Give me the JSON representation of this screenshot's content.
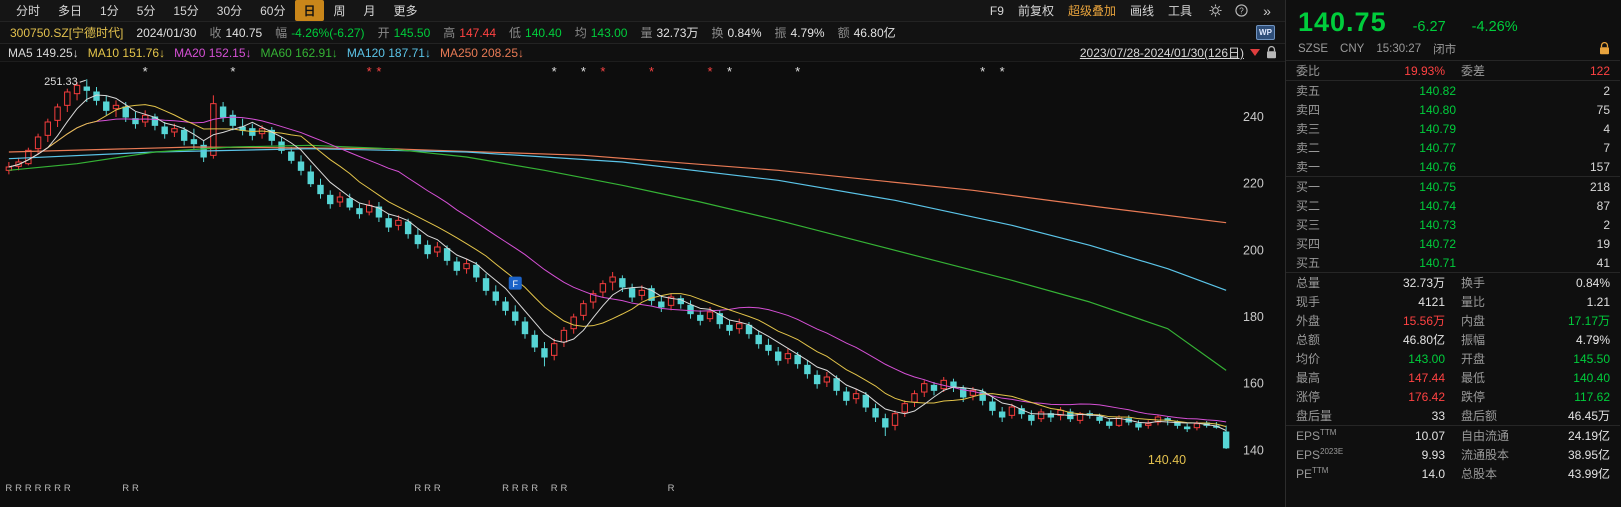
{
  "toolbar": {
    "left_items": [
      "分时",
      "多日",
      "1分",
      "5分",
      "15分",
      "30分",
      "60分",
      "日",
      "周",
      "月",
      "更多"
    ],
    "active_item": "日",
    "right_items": [
      "F9",
      "前复权",
      "超级叠加",
      "画线",
      "工具"
    ],
    "accent_item": "超级叠加",
    "icons": {
      "gear": "gear-icon",
      "help": "help-icon",
      "chevrons": "»"
    }
  },
  "info_bar": {
    "symbol": "300750.SZ[宁德时代]",
    "date": "2024/01/30",
    "fields": [
      {
        "label": "收",
        "value": "140.75",
        "c": "w"
      },
      {
        "label": "幅",
        "value": "-4.26%(-6.27)",
        "c": "g"
      },
      {
        "label": "开",
        "value": "145.50",
        "c": "g"
      },
      {
        "label": "高",
        "value": "147.44",
        "c": "r"
      },
      {
        "label": "低",
        "value": "140.40",
        "c": "g"
      },
      {
        "label": "均",
        "value": "143.00",
        "c": "g"
      },
      {
        "label": "量",
        "value": "32.73万",
        "c": "w"
      },
      {
        "label": "换",
        "value": "0.84%",
        "c": "w"
      },
      {
        "label": "振",
        "value": "4.79%",
        "c": "w"
      },
      {
        "label": "额",
        "value": "46.80亿",
        "c": "w"
      }
    ],
    "wp_badge": "WP"
  },
  "ma_bar": {
    "items": [
      {
        "label": "MA5",
        "value": "149.25",
        "arrow": "↓",
        "color": "#d9d9d9"
      },
      {
        "label": "MA10",
        "value": "151.76",
        "arrow": "↓",
        "color": "#e3c44a"
      },
      {
        "label": "MA20",
        "value": "152.15",
        "arrow": "↓",
        "color": "#d550d5"
      },
      {
        "label": "MA60",
        "value": "162.91",
        "arrow": "↓",
        "color": "#35b235"
      },
      {
        "label": "MA120",
        "value": "187.71",
        "arrow": "↓",
        "color": "#5bc4e8"
      },
      {
        "label": "MA250",
        "value": "208.25",
        "arrow": "↓",
        "color": "#e87a55"
      }
    ],
    "range": "2023/07/28-2024/01/30(126日)"
  },
  "chart": {
    "type": "candlestick",
    "y_axis": [
      240,
      220,
      200,
      180,
      160,
      140
    ],
    "ohlc": [
      [
        224.0,
        226.5,
        222.8,
        225.0
      ],
      [
        225.2,
        227.8,
        224.0,
        226.5
      ],
      [
        226.0,
        230.8,
        225.5,
        230.0
      ],
      [
        230.5,
        235.0,
        229.0,
        234.0
      ],
      [
        234.5,
        239.5,
        232.5,
        238.5
      ],
      [
        239.0,
        244.0,
        237.0,
        243.0
      ],
      [
        243.5,
        248.5,
        241.5,
        247.5
      ],
      [
        247.0,
        250.5,
        245.0,
        249.5
      ],
      [
        249.0,
        251.33,
        244.5,
        248.0
      ],
      [
        247.5,
        249.0,
        243.5,
        245.0
      ],
      [
        244.5,
        246.5,
        240.5,
        242.0
      ],
      [
        242.5,
        245.0,
        240.0,
        243.5
      ],
      [
        243.0,
        244.5,
        238.5,
        240.0
      ],
      [
        239.5,
        241.5,
        236.5,
        238.0
      ],
      [
        238.5,
        242.0,
        237.0,
        240.5
      ],
      [
        240.0,
        241.0,
        236.0,
        237.5
      ],
      [
        237.0,
        238.5,
        233.5,
        235.0
      ],
      [
        235.5,
        238.0,
        234.0,
        236.5
      ],
      [
        236.0,
        237.0,
        231.5,
        233.0
      ],
      [
        233.2,
        236.5,
        230.5,
        232.0
      ],
      [
        231.5,
        233.0,
        226.5,
        228.0
      ],
      [
        228.5,
        246.5,
        227.5,
        244.0
      ],
      [
        243.0,
        244.5,
        238.5,
        240.0
      ],
      [
        240.5,
        242.0,
        236.0,
        237.5
      ],
      [
        237.0,
        239.5,
        234.5,
        236.0
      ],
      [
        236.5,
        238.0,
        233.0,
        234.5
      ],
      [
        235.0,
        237.5,
        233.5,
        236.5
      ],
      [
        236.0,
        237.0,
        231.5,
        233.0
      ],
      [
        232.5,
        234.0,
        229.0,
        230.0
      ],
      [
        229.5,
        231.0,
        226.0,
        227.0
      ],
      [
        226.5,
        228.5,
        222.5,
        224.0
      ],
      [
        223.5,
        225.5,
        219.0,
        220.0
      ],
      [
        219.5,
        221.5,
        215.5,
        217.0
      ],
      [
        216.5,
        218.0,
        212.5,
        214.0
      ],
      [
        214.5,
        217.5,
        213.0,
        216.0
      ],
      [
        215.5,
        217.0,
        212.0,
        213.0
      ],
      [
        212.5,
        214.0,
        209.5,
        211.0
      ],
      [
        211.5,
        215.0,
        210.5,
        213.5
      ],
      [
        213.0,
        214.5,
        208.5,
        210.0
      ],
      [
        209.5,
        211.0,
        205.5,
        207.0
      ],
      [
        207.5,
        210.5,
        206.0,
        209.0
      ],
      [
        208.5,
        209.5,
        203.5,
        205.0
      ],
      [
        204.5,
        206.5,
        200.5,
        202.0
      ],
      [
        201.5,
        203.0,
        197.5,
        199.0
      ],
      [
        199.5,
        202.5,
        198.0,
        201.0
      ],
      [
        200.5,
        201.5,
        195.5,
        197.0
      ],
      [
        196.5,
        198.0,
        192.5,
        194.0
      ],
      [
        194.5,
        197.5,
        193.0,
        196.0
      ],
      [
        195.5,
        196.5,
        190.5,
        192.0
      ],
      [
        191.5,
        193.0,
        186.5,
        188.0
      ],
      [
        187.5,
        189.5,
        183.5,
        185.0
      ],
      [
        184.5,
        186.0,
        180.5,
        182.0
      ],
      [
        181.5,
        183.5,
        177.5,
        179.0
      ],
      [
        178.5,
        180.0,
        173.5,
        175.0
      ],
      [
        174.5,
        176.0,
        169.5,
        171.0
      ],
      [
        170.5,
        172.5,
        165.2,
        168.0
      ],
      [
        168.5,
        173.5,
        167.0,
        172.0
      ],
      [
        172.5,
        177.0,
        171.0,
        176.0
      ],
      [
        176.5,
        181.0,
        175.0,
        180.0
      ],
      [
        180.5,
        185.0,
        179.0,
        184.0
      ],
      [
        184.5,
        188.0,
        182.5,
        187.0
      ],
      [
        187.5,
        191.0,
        186.0,
        190.0
      ],
      [
        190.5,
        193.5,
        188.0,
        192.0
      ],
      [
        191.5,
        192.5,
        187.5,
        189.0
      ],
      [
        188.5,
        190.0,
        184.5,
        186.0
      ],
      [
        186.5,
        189.5,
        185.0,
        188.0
      ],
      [
        188.5,
        189.5,
        183.5,
        185.0
      ],
      [
        184.5,
        186.5,
        181.5,
        183.0
      ],
      [
        183.5,
        187.0,
        182.0,
        186.0
      ],
      [
        185.5,
        186.5,
        182.5,
        184.0
      ],
      [
        183.5,
        185.0,
        179.5,
        181.0
      ],
      [
        180.5,
        182.0,
        177.5,
        179.0
      ],
      [
        179.5,
        183.0,
        178.5,
        181.5
      ],
      [
        181.0,
        182.0,
        176.5,
        178.0
      ],
      [
        177.5,
        179.0,
        174.5,
        176.0
      ],
      [
        176.5,
        179.5,
        175.0,
        178.0
      ],
      [
        177.5,
        178.5,
        173.5,
        175.0
      ],
      [
        174.5,
        176.0,
        170.5,
        172.0
      ],
      [
        171.5,
        173.5,
        168.5,
        170.0
      ],
      [
        169.5,
        171.0,
        165.5,
        167.0
      ],
      [
        167.5,
        170.5,
        166.0,
        169.0
      ],
      [
        168.5,
        169.5,
        164.5,
        166.0
      ],
      [
        165.5,
        167.0,
        161.5,
        163.0
      ],
      [
        162.5,
        164.0,
        158.5,
        160.0
      ],
      [
        160.5,
        163.5,
        159.0,
        162.0
      ],
      [
        161.5,
        162.5,
        156.5,
        158.0
      ],
      [
        157.5,
        159.0,
        153.5,
        155.0
      ],
      [
        155.5,
        158.5,
        154.0,
        157.0
      ],
      [
        156.5,
        157.5,
        151.5,
        153.0
      ],
      [
        152.5,
        154.0,
        148.5,
        150.0
      ],
      [
        149.5,
        151.0,
        144.3,
        147.0
      ],
      [
        147.5,
        152.0,
        146.0,
        151.0
      ],
      [
        151.5,
        155.0,
        150.0,
        154.0
      ],
      [
        154.5,
        158.0,
        153.0,
        157.0
      ],
      [
        157.5,
        161.0,
        156.0,
        160.0
      ],
      [
        159.5,
        160.5,
        156.5,
        158.0
      ],
      [
        158.5,
        162.0,
        157.5,
        161.0
      ],
      [
        160.5,
        161.5,
        157.5,
        159.0
      ],
      [
        158.5,
        159.5,
        154.5,
        156.0
      ],
      [
        156.5,
        159.0,
        155.0,
        158.0
      ],
      [
        157.5,
        158.5,
        153.5,
        155.0
      ],
      [
        154.5,
        156.0,
        150.5,
        152.0
      ],
      [
        151.5,
        153.0,
        148.5,
        150.0
      ],
      [
        150.5,
        154.0,
        149.5,
        153.0
      ],
      [
        152.5,
        153.5,
        149.5,
        151.0
      ],
      [
        150.5,
        152.0,
        147.5,
        149.0
      ],
      [
        149.5,
        152.5,
        148.5,
        151.5
      ],
      [
        151.0,
        152.0,
        148.5,
        150.0
      ],
      [
        150.5,
        153.0,
        149.0,
        152.0
      ],
      [
        151.5,
        152.5,
        148.5,
        149.5
      ],
      [
        149.0,
        151.5,
        148.0,
        151.0
      ],
      [
        151.0,
        152.0,
        149.5,
        150.5
      ],
      [
        150.0,
        151.0,
        148.0,
        149.0
      ],
      [
        148.5,
        149.5,
        146.5,
        147.5
      ],
      [
        147.5,
        150.5,
        147.0,
        150.0
      ],
      [
        149.5,
        150.5,
        147.5,
        148.5
      ],
      [
        148.0,
        149.0,
        146.0,
        147.0
      ],
      [
        147.5,
        149.0,
        146.5,
        148.0
      ],
      [
        148.5,
        150.5,
        147.5,
        150.0
      ],
      [
        149.5,
        150.0,
        147.5,
        149.0
      ],
      [
        148.5,
        149.0,
        146.5,
        147.5
      ],
      [
        147.0,
        148.0,
        145.5,
        146.5
      ],
      [
        146.8,
        148.8,
        146.0,
        148.0
      ],
      [
        148.2,
        148.8,
        146.8,
        147.5
      ],
      [
        147.3,
        148.5,
        146.5,
        147.0
      ],
      [
        145.5,
        147.44,
        140.4,
        140.75
      ]
    ],
    "up_color": "#f53d3d",
    "down_color": "#57d5d5",
    "ma_colors": {
      "ma5": "#d9d9d9",
      "ma10": "#e3c44a",
      "ma20": "#d550d5",
      "ma60": "#35b235",
      "ma120": "#5bc4e8",
      "ma250": "#e87a55"
    },
    "ma_samples": {
      "ma60": [
        [
          1,
          224
        ],
        [
          8,
          226
        ],
        [
          16,
          229.5
        ],
        [
          24,
          231
        ],
        [
          32,
          231.5
        ],
        [
          40,
          230.5
        ],
        [
          48,
          228
        ],
        [
          56,
          224
        ],
        [
          64,
          219.5
        ],
        [
          72,
          214.5
        ],
        [
          80,
          209
        ],
        [
          88,
          203
        ],
        [
          96,
          197
        ],
        [
          104,
          191
        ],
        [
          112,
          184.5
        ],
        [
          120,
          176.5
        ],
        [
          126,
          164
        ]
      ],
      "ma120": [
        [
          1,
          227.5
        ],
        [
          16,
          229.5
        ],
        [
          32,
          230.5
        ],
        [
          48,
          229.5
        ],
        [
          64,
          226.5
        ],
        [
          80,
          221
        ],
        [
          92,
          215
        ],
        [
          104,
          207.5
        ],
        [
          112,
          201.5
        ],
        [
          120,
          194.5
        ],
        [
          126,
          188
        ]
      ],
      "ma250": [
        [
          1,
          229.5
        ],
        [
          20,
          231
        ],
        [
          40,
          230.5
        ],
        [
          60,
          228.5
        ],
        [
          80,
          224
        ],
        [
          100,
          218
        ],
        [
          113,
          213
        ],
        [
          126,
          208.3
        ]
      ]
    },
    "peak": {
      "day": 9,
      "price": 251.33,
      "label": "251.33"
    },
    "low": {
      "day": 126,
      "price": 140.4,
      "label": "140.40"
    },
    "f_flag": {
      "day": 53,
      "price": 190,
      "label": "F"
    },
    "star_char": "*",
    "r_char": "R",
    "stars": [
      {
        "d": 15,
        "c": "w"
      },
      {
        "d": 24,
        "c": "w"
      },
      {
        "d": 38,
        "c": "r"
      },
      {
        "d": 39,
        "c": "r"
      },
      {
        "d": 57,
        "c": "w"
      },
      {
        "d": 60,
        "c": "w"
      },
      {
        "d": 62,
        "c": "r"
      },
      {
        "d": 67,
        "c": "r"
      },
      {
        "d": 73,
        "c": "r"
      },
      {
        "d": 75,
        "c": "w"
      },
      {
        "d": 82,
        "c": "w"
      },
      {
        "d": 101,
        "c": "w"
      },
      {
        "d": 103,
        "c": "w"
      }
    ],
    "r_marks": [
      1,
      2,
      3,
      4,
      5,
      6,
      7,
      13,
      14,
      43,
      44,
      45,
      52,
      53,
      54,
      55,
      57,
      58,
      69
    ]
  },
  "panel": {
    "price": "140.75",
    "change": "-6.27",
    "change_pct": "-4.26%",
    "exchange": "SZSE",
    "currency": "CNY",
    "time": "15:30:27",
    "status": "闭市",
    "weibi": [
      "委比",
      "19.93%",
      "r",
      "委差",
      "122",
      "r"
    ],
    "asks": [
      [
        "卖五",
        "140.82",
        "2"
      ],
      [
        "卖四",
        "140.80",
        "75"
      ],
      [
        "卖三",
        "140.79",
        "4"
      ],
      [
        "卖二",
        "140.77",
        "7"
      ],
      [
        "卖一",
        "140.76",
        "157"
      ]
    ],
    "bids": [
      [
        "买一",
        "140.75",
        "218"
      ],
      [
        "买二",
        "140.74",
        "87"
      ],
      [
        "买三",
        "140.73",
        "2"
      ],
      [
        "买四",
        "140.72",
        "19"
      ],
      [
        "买五",
        "140.71",
        "41"
      ]
    ],
    "stats": [
      [
        "总量",
        "32.73万",
        "w",
        "换手",
        "0.84%",
        "w"
      ],
      [
        "现手",
        "4121",
        "w",
        "量比",
        "1.21",
        "w"
      ],
      [
        "外盘",
        "15.56万",
        "r",
        "内盘",
        "17.17万",
        "g"
      ],
      [
        "总额",
        "46.80亿",
        "w",
        "振幅",
        "4.79%",
        "w"
      ],
      [
        "均价",
        "143.00",
        "g",
        "开盘",
        "145.50",
        "g"
      ],
      [
        "最高",
        "147.44",
        "r",
        "最低",
        "140.40",
        "g"
      ],
      [
        "涨停",
        "176.42",
        "r",
        "跌停",
        "117.62",
        "g"
      ],
      [
        "盘后量",
        "33",
        "w",
        "盘后额",
        "46.45万",
        "w"
      ]
    ],
    "fin": [
      {
        "l1": "EPS",
        "s1": "TTM",
        "v1": "10.07",
        "l2": "自由流通",
        "v2": "24.19亿"
      },
      {
        "l1": "EPS",
        "s1": "2023E",
        "v1": "9.93",
        "l2": "流通股本",
        "v2": "38.95亿"
      },
      {
        "l1": "PE",
        "s1": "TTM",
        "v1": "14.0",
        "l2": "总股本",
        "v2": "43.99亿"
      }
    ]
  }
}
